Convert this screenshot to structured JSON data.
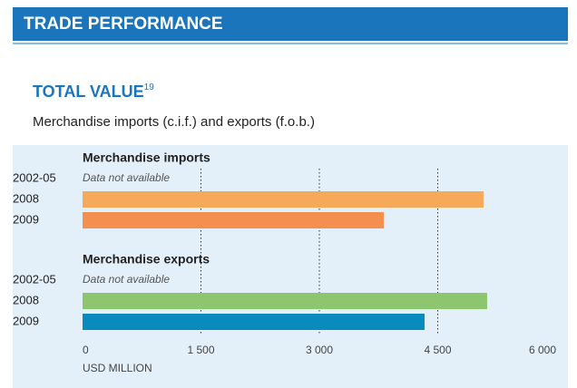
{
  "header": {
    "title": "TRADE PERFORMANCE"
  },
  "chart_data": {
    "type": "bar",
    "title": "TOTAL VALUE",
    "title_note": "19",
    "subtitle": "Merchandise imports (c.i.f.) and exports (f.o.b.)",
    "xlabel": "USD MILLION",
    "xlim": [
      0,
      6000
    ],
    "xticks": [
      0,
      {
        "value": 1500,
        "label": "1 500"
      },
      {
        "value": 3000,
        "label": "3 000"
      },
      {
        "value": 4500,
        "label": "4 500"
      },
      {
        "value": 6000,
        "label": "6 000"
      }
    ],
    "grid": true,
    "panels": [
      {
        "title": "Merchandise imports",
        "categories": [
          "2002-05",
          "2008",
          "2009"
        ],
        "values": [
          null,
          5080,
          3816
        ],
        "value_labels": [
          "Data not available",
          null,
          null
        ],
        "colors": [
          "#f7a95a",
          "#f7a95a",
          "#f58f4f"
        ]
      },
      {
        "title": "Merchandise exports",
        "categories": [
          "2002-05",
          "2008",
          "2009"
        ],
        "values": [
          null,
          5126,
          4333
        ],
        "value_labels": [
          "Data not available",
          null,
          null
        ],
        "colors": [
          "#8dc66e",
          "#8dc66e",
          "#0a8bbd"
        ]
      }
    ]
  }
}
